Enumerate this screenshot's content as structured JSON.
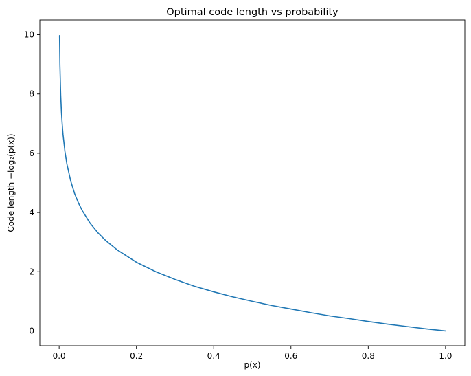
{
  "chart_data": {
    "type": "line",
    "title": "Optimal code length vs probability",
    "xlabel": "p(x)",
    "ylabel": "Code length −log₂(p(x))",
    "xlim": [
      -0.05,
      1.05
    ],
    "ylim": [
      -0.5,
      10.5
    ],
    "xticks": [
      0.0,
      0.2,
      0.4,
      0.6,
      0.8,
      1.0
    ],
    "xtick_labels": [
      "0.0",
      "0.2",
      "0.4",
      "0.6",
      "0.8",
      "1.0"
    ],
    "yticks": [
      0,
      2,
      4,
      6,
      8,
      10
    ],
    "ytick_labels": [
      "0",
      "2",
      "4",
      "6",
      "8",
      "10"
    ],
    "grid": false,
    "series": [
      {
        "color": "#1f77b4",
        "x": [
          0.001,
          0.002,
          0.004,
          0.006,
          0.008,
          0.01,
          0.015,
          0.02,
          0.03,
          0.04,
          0.05,
          0.06,
          0.08,
          0.1,
          0.12,
          0.15,
          0.2,
          0.25,
          0.3,
          0.35,
          0.4,
          0.45,
          0.5,
          0.55,
          0.6,
          0.65,
          0.7,
          0.75,
          0.8,
          0.85,
          0.9,
          0.95,
          1.0
        ],
        "y": [
          9.97,
          8.97,
          7.97,
          7.38,
          6.97,
          6.64,
          6.06,
          5.64,
          5.06,
          4.64,
          4.32,
          4.06,
          3.64,
          3.32,
          3.06,
          2.74,
          2.32,
          2.0,
          1.74,
          1.51,
          1.32,
          1.15,
          1.0,
          0.86,
          0.74,
          0.62,
          0.51,
          0.42,
          0.32,
          0.23,
          0.15,
          0.07,
          0.0
        ]
      }
    ]
  }
}
